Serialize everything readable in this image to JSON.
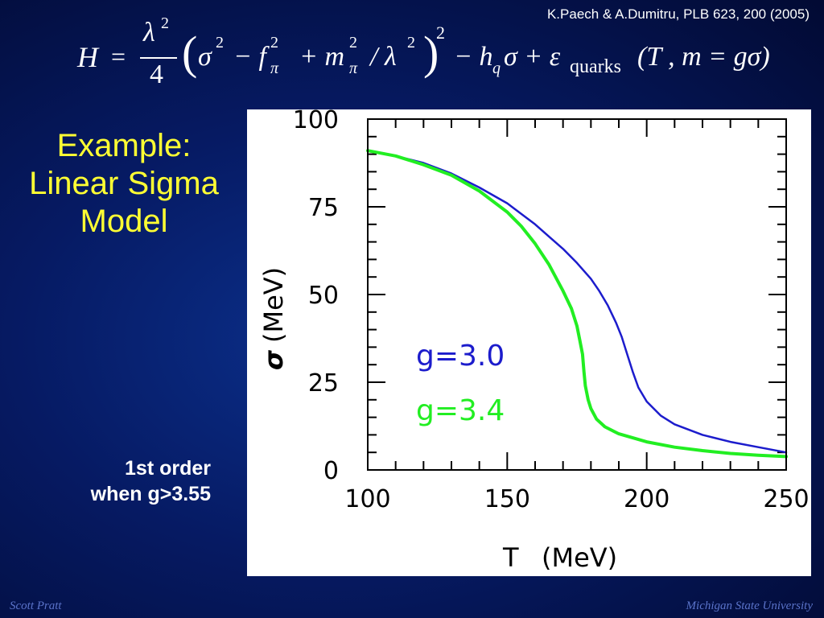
{
  "slide": {
    "citation": "K.Paech & A.Dumitru,  PLB 623, 200 (2005)",
    "title_lines": [
      "Example:",
      "Linear Sigma",
      "Model"
    ],
    "note_lines": [
      "1st order",
      "when g>3.55"
    ],
    "footer_left": "Scott Pratt",
    "footer_right": "Michigan State University",
    "formula": {
      "H": "H",
      "eq": "=",
      "lambda_sq": "λ",
      "two": "2",
      "four": "4",
      "open_paren": "(",
      "sigma": "σ",
      "minus_f": "− f",
      "pi": "π",
      "plus_m": "+ m",
      "slash_lambda": "/ λ",
      "close_paren": ")",
      "minus_h": "− h",
      "q": "q",
      "sigma_plus_eps": "σ + ε",
      "quarks": "quarks",
      "args": "(T , m = gσ)"
    }
  },
  "colors": {
    "g30": "#1c1ccc",
    "g34": "#22ee22",
    "title": "#ffff33"
  },
  "chart_data": {
    "type": "line",
    "xlabel": "T",
    "xlabel_unit": "(MeV)",
    "ylabel": "σ",
    "ylabel_unit": "(MeV)",
    "xlim": [
      100,
      250
    ],
    "ylim": [
      0,
      100
    ],
    "x_ticks": [
      100,
      150,
      200,
      250
    ],
    "y_ticks": [
      0,
      25,
      50,
      75,
      100
    ],
    "x_tick_labels": [
      "100",
      "150",
      "200",
      "250"
    ],
    "y_tick_labels": [
      "0",
      "25",
      "50",
      "75",
      "100"
    ],
    "grid": false,
    "legend_placement": "center",
    "series": [
      {
        "name": "g=3.0",
        "color": "#1c1ccc",
        "x": [
          100,
          110,
          120,
          130,
          140,
          150,
          160,
          165,
          170,
          175,
          180,
          183,
          186,
          189,
          191,
          193,
          195,
          197,
          200,
          205,
          210,
          220,
          230,
          240,
          250
        ],
        "y": [
          91,
          89.5,
          87.5,
          84.5,
          80.5,
          76,
          70,
          66.5,
          63,
          59,
          54.5,
          51,
          47,
          42,
          38,
          33,
          28,
          23.5,
          19.5,
          15.5,
          13,
          10,
          8,
          6.5,
          5
        ]
      },
      {
        "name": "g=3.4",
        "color": "#22ee22",
        "x": [
          100,
          110,
          120,
          130,
          140,
          150,
          155,
          160,
          165,
          170,
          173,
          175,
          176,
          177,
          177.5,
          178,
          179,
          180,
          182,
          185,
          190,
          200,
          210,
          220,
          230,
          240,
          250
        ],
        "y": [
          91,
          89.5,
          87,
          84,
          79.5,
          73.5,
          69.5,
          64.5,
          58.5,
          51,
          46,
          41,
          37,
          33,
          28,
          24,
          20,
          17.5,
          14.5,
          12.3,
          10.3,
          8,
          6.5,
          5.5,
          4.7,
          4.2,
          3.8
        ]
      }
    ]
  }
}
